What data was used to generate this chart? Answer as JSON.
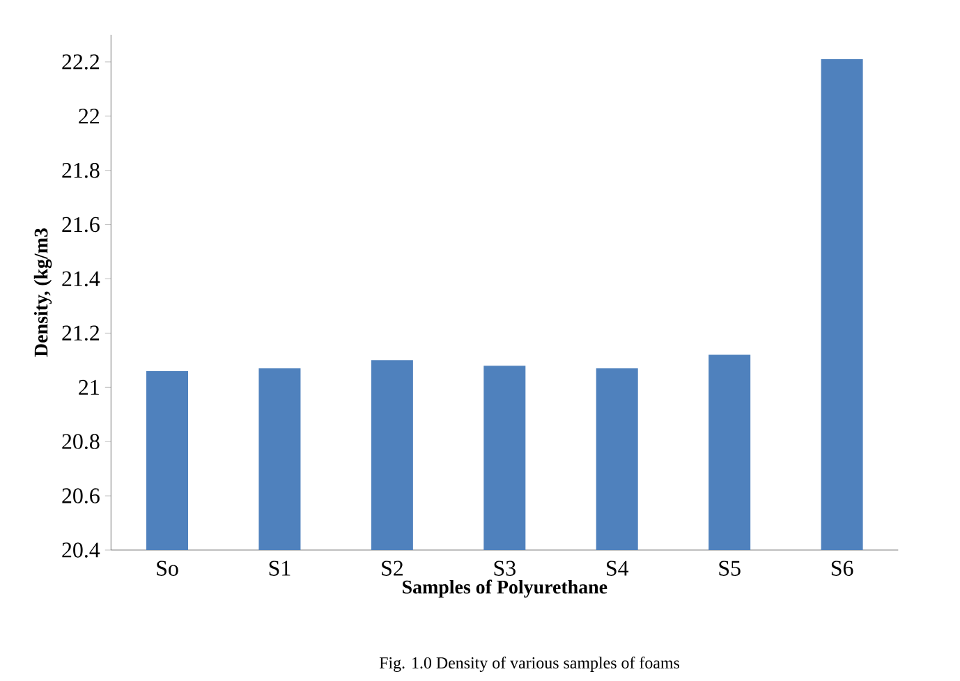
{
  "chart_data": {
    "type": "bar",
    "xlabel": "Samples of Polyurethane",
    "ylabel": "Density, (kg/m3",
    "categories": [
      "So",
      "S1",
      "S2",
      "S3",
      "S4",
      "S5",
      "S6"
    ],
    "values": [
      21.06,
      21.07,
      21.1,
      21.08,
      21.07,
      21.12,
      22.21
    ],
    "color": "#4f81bd",
    "ylim": [
      20.4,
      22.3
    ],
    "yticks": [
      20.4,
      20.6,
      20.8,
      21,
      21.2,
      21.4,
      21.6,
      21.8,
      22,
      22.2
    ],
    "annotations": [
      "Fig. 1.0 Density of various samples of foams"
    ]
  }
}
